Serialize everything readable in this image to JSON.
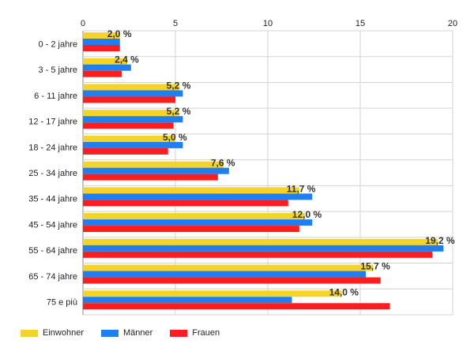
{
  "chart_data": {
    "type": "bar",
    "orientation": "horizontal",
    "categories": [
      "0 - 2 jahre",
      "3 - 5 jahre",
      "6 - 11 jahre",
      "12 - 17 jahre",
      "18 - 24 jahre",
      "25 - 34 jahre",
      "35 - 44 jahre",
      "45 - 54 jahre",
      "55 - 64 jahre",
      "65 - 74 jahre",
      "75 e più"
    ],
    "series": [
      {
        "name": "Einwohner",
        "color": "#f5d327",
        "values": [
          2.0,
          2.4,
          5.2,
          5.2,
          5.0,
          7.6,
          11.7,
          12.0,
          19.2,
          15.7,
          14.0
        ]
      },
      {
        "name": "Männer",
        "color": "#1f7ef0",
        "values": [
          2.0,
          2.6,
          5.4,
          5.4,
          5.4,
          7.9,
          12.4,
          12.4,
          19.5,
          15.3,
          11.3
        ]
      },
      {
        "name": "Frauen",
        "color": "#fc1e1e",
        "values": [
          2.0,
          2.1,
          5.0,
          4.9,
          4.6,
          7.3,
          11.1,
          11.7,
          18.9,
          16.1,
          16.6
        ]
      }
    ],
    "data_labels": [
      "2,0 %",
      "2,4 %",
      "5,2 %",
      "5,2 %",
      "5,0 %",
      "7,6 %",
      "11,7 %",
      "12,0 %",
      "19,2 %",
      "15,7 %",
      "14,0 %"
    ],
    "xticks": [
      "0",
      "5",
      "10",
      "15",
      "20"
    ],
    "xlim": [
      0,
      20
    ],
    "axis_position": "top",
    "grid": true,
    "legend_position": "bottom-left",
    "title": "",
    "xlabel": "",
    "ylabel": ""
  }
}
